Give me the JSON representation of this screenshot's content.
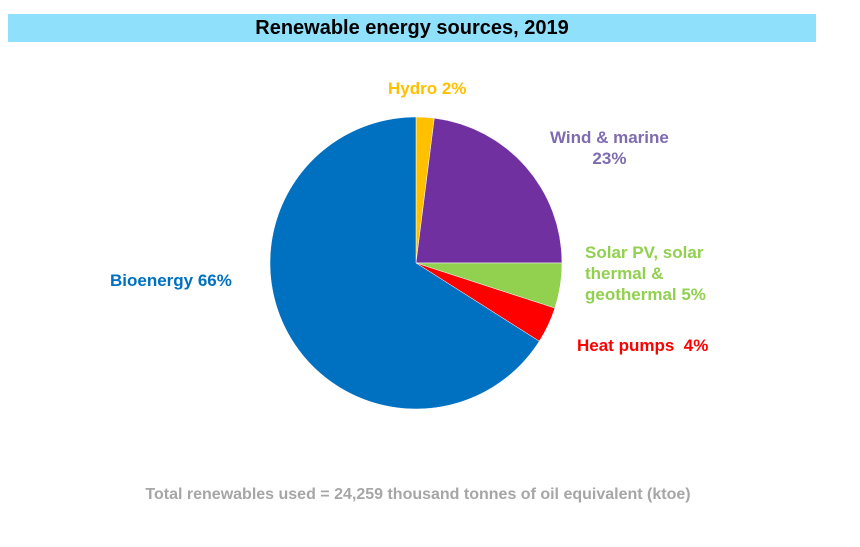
{
  "chart_data": {
    "type": "pie",
    "title": "Renewable energy sources, 2019",
    "slices": [
      {
        "name": "Hydro",
        "value": 2,
        "label": "Hydro 2%",
        "color": "#ffc000"
      },
      {
        "name": "Wind & marine",
        "value": 23,
        "label": "Wind & marine\n23%",
        "color": "#7030a0"
      },
      {
        "name": "Solar PV, solar thermal & geothermal",
        "value": 5,
        "label": "Solar PV, solar\nthermal &\ngeothermal  5%",
        "color": "#92d050"
      },
      {
        "name": "Heat pumps",
        "value": 4,
        "label": "Heat pumps  4%",
        "color": "#ff0000"
      },
      {
        "name": "Bioenergy",
        "value": 66,
        "label": "Bioenergy 66%",
        "color": "#0070c0"
      }
    ],
    "footnote": "Total renewables used = 24,259 thousand tonnes of oil equivalent (ktoe)"
  }
}
